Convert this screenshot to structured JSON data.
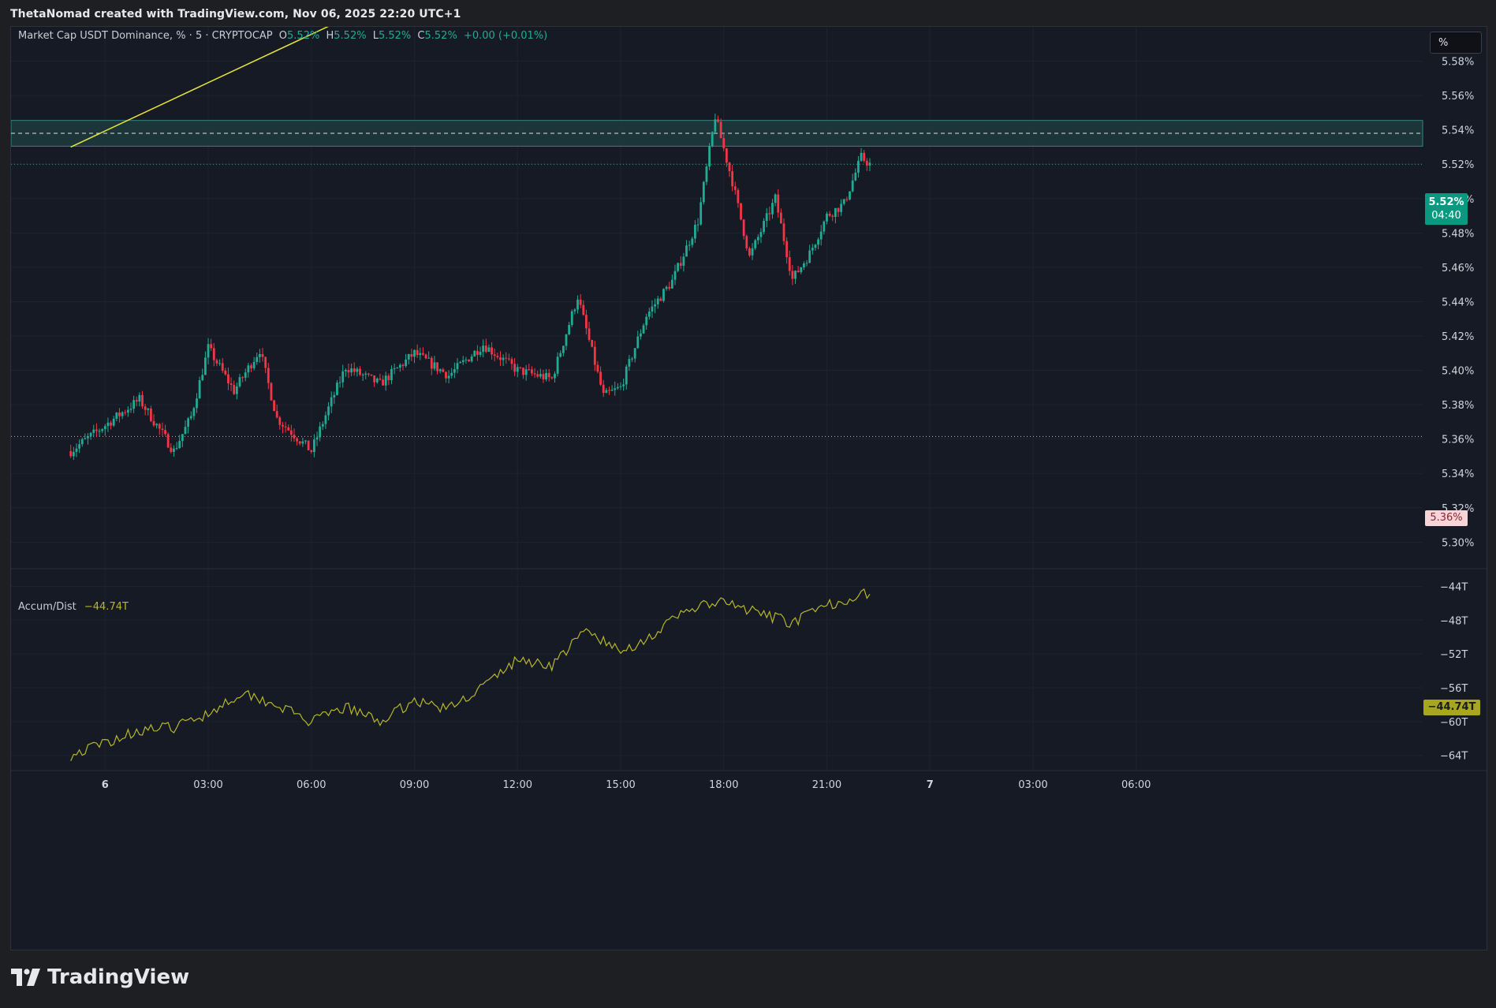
{
  "header": {
    "attribution": "ThetaNomad created with TradingView.com, Nov 06, 2025 22:20 UTC+1"
  },
  "legend": {
    "symbol": "Market Cap USDT Dominance, % · 5 · CRYPTOCAP",
    "o_label": "O",
    "o_value": "5.52%",
    "h_label": "H",
    "h_value": "5.52%",
    "l_label": "L",
    "l_value": "5.52%",
    "c_label": "C",
    "c_value": "5.52%",
    "change": "+0.00 (+0.01%)"
  },
  "indicator": {
    "name": "Accum/Dist",
    "value": "−44.74T"
  },
  "unit_button": "%",
  "price_tags": {
    "last_price": "5.52%",
    "countdown": "04:40",
    "marker_price": "5.36%",
    "ad_last": "−44.74T"
  },
  "footer": {
    "brand": "TradingView"
  },
  "colors": {
    "up": "#22ab94",
    "down": "#f23645",
    "ad_line": "#b7b72a",
    "trendline": "#e8e53a",
    "zone": "#1c3b3d",
    "background": "#161a25"
  },
  "chart_data": [
    {
      "type": "candlestick",
      "title": "Market Cap USDT Dominance, % · 5 · CRYPTOCAP",
      "x_ticks": [
        "6",
        "03:00",
        "06:00",
        "09:00",
        "12:00",
        "15:00",
        "18:00",
        "21:00",
        "7",
        "03:00",
        "06:00"
      ],
      "y_ticks": [
        "5.58%",
        "5.56%",
        "5.54%",
        "5.52%",
        "5.50%",
        "5.48%",
        "5.46%",
        "5.44%",
        "5.42%",
        "5.40%",
        "5.38%",
        "5.36%",
        "5.34%",
        "5.32%",
        "5.30%"
      ],
      "ylim": [
        5.285,
        5.6
      ],
      "grid": true,
      "resistance_zone": [
        5.5305,
        5.5455
      ],
      "zone_midline": 5.538,
      "horizontal_lines": [
        5.52,
        5.3615
      ],
      "trendline": {
        "start": [
          "05 23:00",
          5.53
        ],
        "end": [
          "06 07:00",
          5.605
        ]
      },
      "anchors": [
        [
          "05 23:00",
          5.353
        ],
        [
          "06 00:00",
          5.368
        ],
        [
          "06 01:00",
          5.383
        ],
        [
          "06 02:00",
          5.353
        ],
        [
          "06 02:30",
          5.373
        ],
        [
          "06 03:00",
          5.413
        ],
        [
          "06 03:45",
          5.388
        ],
        [
          "06 04:30",
          5.412
        ],
        [
          "06 05:00",
          5.372
        ],
        [
          "06 06:00",
          5.353
        ],
        [
          "06 06:30",
          5.378
        ],
        [
          "06 07:00",
          5.402
        ],
        [
          "06 08:00",
          5.392
        ],
        [
          "06 09:00",
          5.41
        ],
        [
          "06 10:00",
          5.397
        ],
        [
          "06 11:00",
          5.415
        ],
        [
          "06 12:00",
          5.4
        ],
        [
          "06 13:00",
          5.395
        ],
        [
          "06 13:45",
          5.443
        ],
        [
          "06 14:30",
          5.385
        ],
        [
          "06 15:00",
          5.39
        ],
        [
          "06 15:45",
          5.432
        ],
        [
          "06 16:30",
          5.452
        ],
        [
          "06 17:15",
          5.487
        ],
        [
          "06 17:45",
          5.548
        ],
        [
          "06 18:15",
          5.51
        ],
        [
          "06 18:45",
          5.466
        ],
        [
          "06 19:30",
          5.5
        ],
        [
          "06 20:00",
          5.453
        ],
        [
          "06 20:30",
          5.468
        ],
        [
          "06 21:00",
          5.49
        ],
        [
          "06 21:30",
          5.497
        ],
        [
          "06 22:00",
          5.524
        ],
        [
          "06 22:15",
          5.52
        ]
      ]
    },
    {
      "type": "line",
      "title": "Accum/Dist",
      "y_ticks": [
        "-44T",
        "-48T",
        "-52T",
        "-56T",
        "-60T",
        "-64T"
      ],
      "ylim": [
        -65.8,
        -42.0
      ],
      "grid": true,
      "x": [
        "05 23:00",
        "06 00:00",
        "06 01:00",
        "06 02:00",
        "06 03:00",
        "06 04:00",
        "06 05:00",
        "06 06:00",
        "06 07:00",
        "06 08:00",
        "06 09:00",
        "06 10:00",
        "06 11:00",
        "06 12:00",
        "06 13:00",
        "06 14:00",
        "06 15:00",
        "06 16:00",
        "06 17:00",
        "06 18:00",
        "06 19:00",
        "06 20:00",
        "06 21:00",
        "06 22:00",
        "06 22:15"
      ],
      "values": [
        -64.0,
        -62.5,
        -61.0,
        -60.7,
        -59.0,
        -56.5,
        -58.0,
        -60.1,
        -58.3,
        -60.0,
        -57.5,
        -58.5,
        -55.8,
        -52.7,
        -53.3,
        -49.2,
        -51.8,
        -49.6,
        -46.6,
        -45.9,
        -47.2,
        -48.3,
        -46.3,
        -44.9,
        -44.74
      ]
    }
  ]
}
